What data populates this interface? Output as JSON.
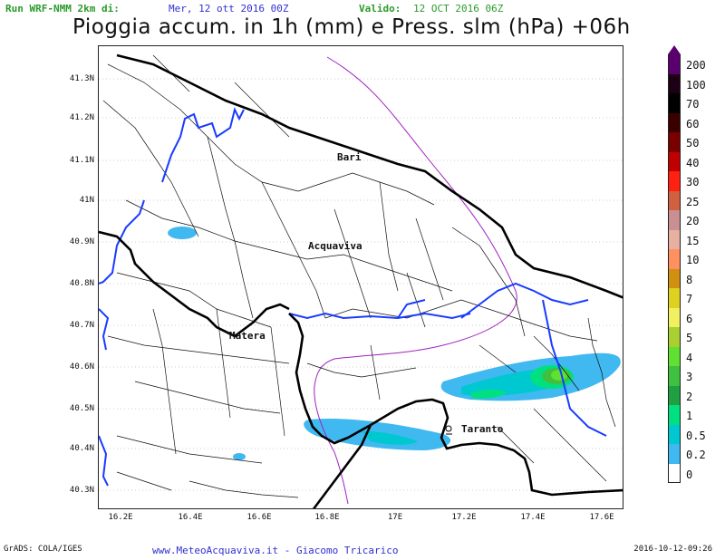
{
  "header": {
    "run_label": "Run WRF-NMM 2km di:",
    "run_date": "Mer, 12 ott 2016 00Z",
    "valid_label": "Valido:",
    "valid_date": "12 OCT 2016 06Z"
  },
  "title": "Pioggia accum. in 1h (mm) e Press. slm (hPa) +06h",
  "map": {
    "latitude_ticks": [
      "41.3N",
      "41.2N",
      "41.1N",
      "41N",
      "40.9N",
      "40.8N",
      "40.7N",
      "40.6N",
      "40.5N",
      "40.4N",
      "40.3N"
    ],
    "longitude_ticks": [
      "16.2E",
      "16.4E",
      "16.6E",
      "16.8E",
      "17E",
      "17.2E",
      "17.4E",
      "17.6E"
    ],
    "cities": [
      {
        "name": "Bari",
        "lon": 16.87,
        "lat": 41.12
      },
      {
        "name": "Acquaviva",
        "lon": 16.84,
        "lat": 40.9
      },
      {
        "name": "Matera",
        "lon": 16.6,
        "lat": 40.67
      },
      {
        "name": "Taranto",
        "lon": 17.23,
        "lat": 40.47
      }
    ],
    "colors": {
      "coast": "#000000",
      "regional_border": "#1a3cff",
      "municipal_border": "#000000",
      "isobar": "#a020c0"
    }
  },
  "legend": {
    "title": "",
    "levels": [
      {
        "label": "200",
        "color": "#5a006e"
      },
      {
        "label": "100",
        "color": "#1c0016"
      },
      {
        "label": "70",
        "color": "#000000"
      },
      {
        "label": "60",
        "color": "#3a0000"
      },
      {
        "label": "50",
        "color": "#7a0000"
      },
      {
        "label": "40",
        "color": "#c00000"
      },
      {
        "label": "30",
        "color": "#ff2010"
      },
      {
        "label": "25",
        "color": "#d06040"
      },
      {
        "label": "20",
        "color": "#c89090"
      },
      {
        "label": "15",
        "color": "#e8b0a0"
      },
      {
        "label": "10",
        "color": "#ff9060"
      },
      {
        "label": "8",
        "color": "#d09010"
      },
      {
        "label": "7",
        "color": "#e0d020"
      },
      {
        "label": "6",
        "color": "#f0f060"
      },
      {
        "label": "5",
        "color": "#a8d030"
      },
      {
        "label": "4",
        "color": "#60e030"
      },
      {
        "label": "3",
        "color": "#40c040"
      },
      {
        "label": "2",
        "color": "#20a040"
      },
      {
        "label": "1",
        "color": "#00e080"
      },
      {
        "label": "0.5",
        "color": "#00c8d0"
      },
      {
        "label": "0.2",
        "color": "#40b8f0"
      },
      {
        "label": "0",
        "color": "#ffffff"
      }
    ]
  },
  "footer": {
    "grads_label": "GrADS: COLA/IGES",
    "credit": "www.MeteoAcquaviva.it - Giacomo Tricarico",
    "timestamp": "2016-10-12-09:26"
  }
}
